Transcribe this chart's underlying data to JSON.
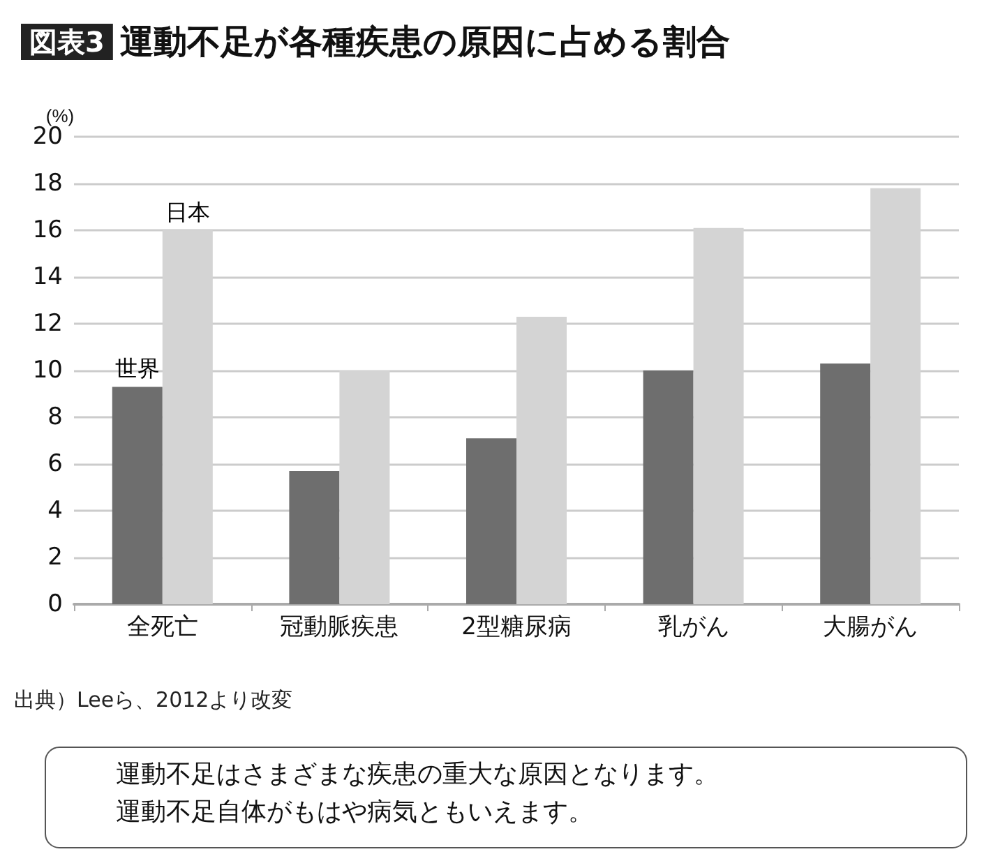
{
  "chart_data": {
    "type": "bar",
    "title": "図表3 運動不足が各種疾患の原因に占める割合",
    "ylabel": "(%)",
    "categories": [
      "全死亡",
      "冠動脈疾患",
      "2型糖尿病",
      "乳がん",
      "大腸がん"
    ],
    "series": [
      {
        "name": "世界",
        "color": "#6e6e6e",
        "values": [
          9.3,
          5.7,
          7.1,
          10.0,
          10.3
        ]
      },
      {
        "name": "日本",
        "color": "#d4d4d4",
        "values": [
          16.0,
          10.0,
          12.3,
          16.1,
          17.8
        ]
      }
    ],
    "ylim": [
      0,
      20
    ],
    "yticks": [
      0,
      2,
      4,
      6,
      8,
      10,
      12,
      14,
      16,
      18,
      20
    ],
    "grid": "y",
    "legend": false,
    "annotations": [
      "出典）Leeら、2012より改変",
      "運動不足はさまざまな疾患の重大な原因となります。",
      "運動不足自体がもはや病気ともいえます。"
    ]
  }
}
